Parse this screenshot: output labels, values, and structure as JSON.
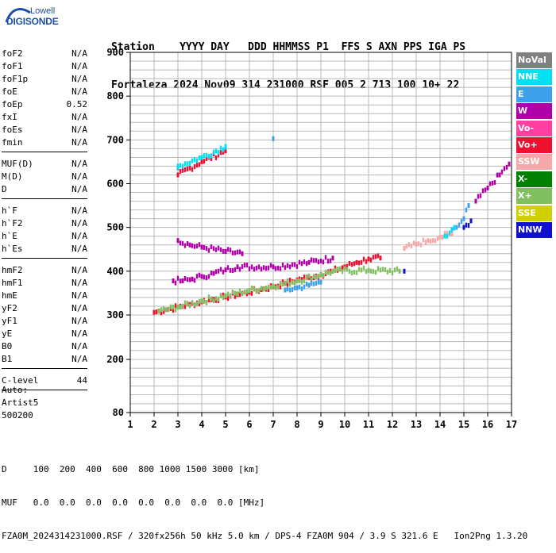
{
  "logo": {
    "top": "Lowell",
    "bottom": "DIGISONDE"
  },
  "header": {
    "line1": "Station    YYYY DAY   DDD HHMMSS P1  FFS S AXN PPS IGA PS",
    "line2": "Fortaleza 2024 Nov09 314 231000 RSF 005 2 713 100 10+ 22"
  },
  "params": {
    "group1": [
      [
        "foF2",
        "N/A"
      ],
      [
        "foF1",
        "N/A"
      ],
      [
        "foF1p",
        "N/A"
      ],
      [
        "foE",
        "N/A"
      ],
      [
        "foEp",
        "0.52"
      ],
      [
        "fxI",
        "N/A"
      ],
      [
        "foEs",
        "N/A"
      ],
      [
        "fmin",
        "N/A"
      ]
    ],
    "group2": [
      [
        "MUF(D)",
        "N/A"
      ],
      [
        "M(D)",
        "N/A"
      ],
      [
        "D",
        "N/A"
      ]
    ],
    "group3": [
      [
        "h`F",
        "N/A"
      ],
      [
        "h`F2",
        "N/A"
      ],
      [
        "h`E",
        "N/A"
      ],
      [
        "h`Es",
        "N/A"
      ]
    ],
    "group4": [
      [
        "hmF2",
        "N/A"
      ],
      [
        "hmF1",
        "N/A"
      ],
      [
        "hmE",
        "N/A"
      ],
      [
        "yF2",
        "N/A"
      ],
      [
        "yF1",
        "N/A"
      ],
      [
        "yE",
        "N/A"
      ],
      [
        "B0",
        "N/A"
      ],
      [
        "B1",
        "N/A"
      ]
    ],
    "group5": [
      [
        "C-level",
        "44"
      ]
    ]
  },
  "auto": {
    "l1": "Auto:",
    "l2": "Artist5",
    "l3": "500200"
  },
  "legend": [
    {
      "label": "NoVal",
      "color": "#808080"
    },
    {
      "label": "NNE",
      "color": "#00e0f0"
    },
    {
      "label": "E",
      "color": "#3ca0ea"
    },
    {
      "label": "W",
      "color": "#b000a8"
    },
    {
      "label": "Vo-",
      "color": "#ff40a0"
    },
    {
      "label": "Vo+",
      "color": "#ef1030"
    },
    {
      "label": "SSW",
      "color": "#f4a8a8"
    },
    {
      "label": "X-",
      "color": "#008000"
    },
    {
      "label": "X+",
      "color": "#80c060"
    },
    {
      "label": "SSE",
      "color": "#d0d000"
    },
    {
      "label": "NNW",
      "color": "#1010d0"
    }
  ],
  "footer": {
    "line1": "D     100  200  400  600  800 1000 1500 3000 [km]",
    "line2": "MUF   0.0  0.0  0.0  0.0  0.0  0.0  0.0  0.0 [MHz]",
    "line3": "FZA0M_2024314231000.RSF / 320fx256h 50 kHz 5.0 km / DPS-4 FZA0M 904 / 3.9 S 321.6 E   Ion2Png 1.3.20"
  },
  "chart_data": {
    "type": "scatter",
    "xlim": [
      1,
      17
    ],
    "ylim": [
      80,
      900
    ],
    "y_scale": "ionogram (compressed below 300 km)",
    "x_ticks": [
      "1",
      "2",
      "3",
      "4",
      "5",
      "6",
      "7",
      "8",
      "9",
      "10",
      "11",
      "12",
      "13",
      "14",
      "15",
      "16",
      "17"
    ],
    "y_ticks": [
      "80",
      "200",
      "300",
      "400",
      "500",
      "600",
      "700",
      "800",
      "900"
    ],
    "series": [
      {
        "name": "Vo+",
        "color": "#ef1030",
        "points": [
          [
            2.0,
            306
          ],
          [
            2.5,
            312
          ],
          [
            3.0,
            318
          ],
          [
            3.5,
            324
          ],
          [
            4.0,
            330
          ],
          [
            4.5,
            336
          ],
          [
            5.0,
            341
          ],
          [
            5.5,
            347
          ],
          [
            6.0,
            352
          ],
          [
            6.5,
            358
          ],
          [
            7.0,
            365
          ],
          [
            7.5,
            372
          ],
          [
            8.0,
            380
          ],
          [
            8.5,
            386
          ],
          [
            9.0,
            392
          ],
          [
            9.5,
            400
          ],
          [
            10.0,
            410
          ],
          [
            10.5,
            420
          ],
          [
            11.0,
            428
          ],
          [
            11.5,
            430
          ],
          [
            3.0,
            620
          ],
          [
            4.0,
            650
          ],
          [
            5.0,
            675
          ]
        ]
      },
      {
        "name": "W",
        "color": "#b000a8",
        "points": [
          [
            2.8,
            378
          ],
          [
            3.2,
            378
          ],
          [
            3.6,
            382
          ],
          [
            4.0,
            388
          ],
          [
            4.5,
            395
          ],
          [
            5.0,
            403
          ],
          [
            5.5,
            410
          ],
          [
            7.0,
            410
          ],
          [
            8.5,
            420
          ],
          [
            9.5,
            430
          ],
          [
            3.0,
            470
          ],
          [
            3.5,
            460
          ],
          [
            4.0,
            455
          ],
          [
            5.0,
            445
          ],
          [
            5.7,
            440
          ],
          [
            15.5,
            560
          ],
          [
            16.0,
            590
          ],
          [
            16.5,
            620
          ],
          [
            16.9,
            645
          ]
        ]
      },
      {
        "name": "X+",
        "color": "#80c060",
        "points": [
          [
            2.2,
            308
          ],
          [
            3.0,
            318
          ],
          [
            4.0,
            332
          ],
          [
            5.0,
            344
          ],
          [
            6.0,
            356
          ],
          [
            7.0,
            366
          ],
          [
            8.0,
            378
          ],
          [
            9.0,
            392
          ],
          [
            9.5,
            400
          ],
          [
            11.0,
            402
          ],
          [
            12.3,
            400
          ]
        ]
      },
      {
        "name": "E",
        "color": "#3ca0ea",
        "points": [
          [
            7.5,
            357
          ],
          [
            8.0,
            362
          ],
          [
            8.5,
            368
          ],
          [
            9.0,
            375
          ],
          [
            14.5,
            495
          ],
          [
            15.0,
            520
          ],
          [
            15.2,
            550
          ],
          [
            3.0,
            636
          ],
          [
            5.0,
            683
          ],
          [
            7.0,
            703
          ]
        ]
      },
      {
        "name": "SSW",
        "color": "#f4a8a8",
        "points": [
          [
            12.5,
            452
          ],
          [
            13.0,
            462
          ],
          [
            13.5,
            470
          ],
          [
            14.0,
            478
          ],
          [
            14.5,
            486
          ]
        ]
      },
      {
        "name": "NNW",
        "color": "#1010d0",
        "points": [
          [
            12.5,
            400
          ],
          [
            15.0,
            500
          ],
          [
            15.3,
            515
          ]
        ]
      },
      {
        "name": "NNE",
        "color": "#00e0f0",
        "points": [
          [
            3.0,
            640
          ],
          [
            4.0,
            660
          ],
          [
            5.0,
            685
          ],
          [
            14.2,
            480
          ],
          [
            14.6,
            500
          ]
        ]
      }
    ]
  }
}
